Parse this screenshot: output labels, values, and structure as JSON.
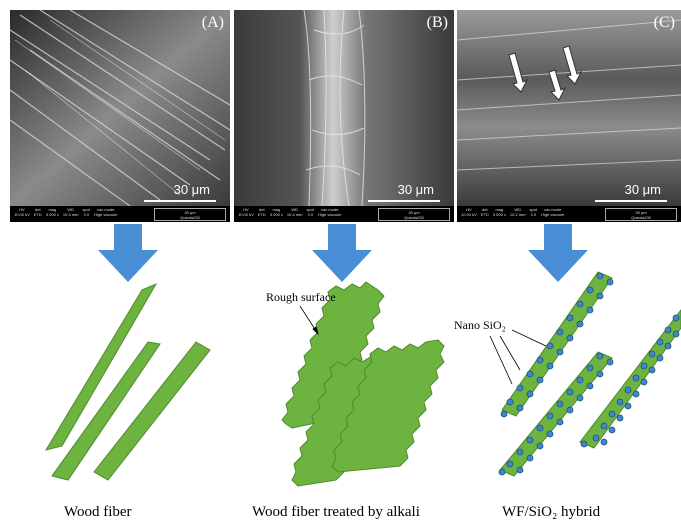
{
  "panels": [
    {
      "letter": "(A)",
      "scale": "30 μm",
      "sem_info": [
        "HV",
        "10.00 kV",
        "det",
        "ETD",
        "mag",
        "3 000 x",
        "WD",
        "10.3 mm",
        "spot",
        "3.0",
        "vac mode",
        "High vacuum"
      ],
      "bar_label": "30 μm",
      "instrument": "Quanta200"
    },
    {
      "letter": "(B)",
      "scale": "30 μm",
      "sem_info": [
        "HV",
        "10.00 kV",
        "det",
        "ETD",
        "mag",
        "3 000 x",
        "WD",
        "10.4 mm",
        "spot",
        "3.0",
        "vac mode",
        "High vacuum"
      ],
      "bar_label": "30 μm",
      "instrument": "Quanta200"
    },
    {
      "letter": "(C)",
      "scale": "30 μm",
      "sem_info": [
        "HV",
        "10.00 kV",
        "det",
        "ETD",
        "mag",
        "3 000 x",
        "WD",
        "10.2 mm",
        "spot",
        "3.0",
        "vac mode",
        "High vacuum"
      ],
      "bar_label": "30 μm",
      "instrument": "Quanta200"
    }
  ],
  "captions": [
    "Wood fiber",
    "Wood fiber treated by alkali",
    "WF/SiO₂ hybrid"
  ],
  "annotations": {
    "rough": "Rough surface",
    "nano": "Nano SiO₂"
  },
  "colors": {
    "fiber": "#6cb43f",
    "fiber_edge": "#4f8a2c",
    "arrow": "#4a8fd6",
    "particle": "#3f87c9"
  }
}
